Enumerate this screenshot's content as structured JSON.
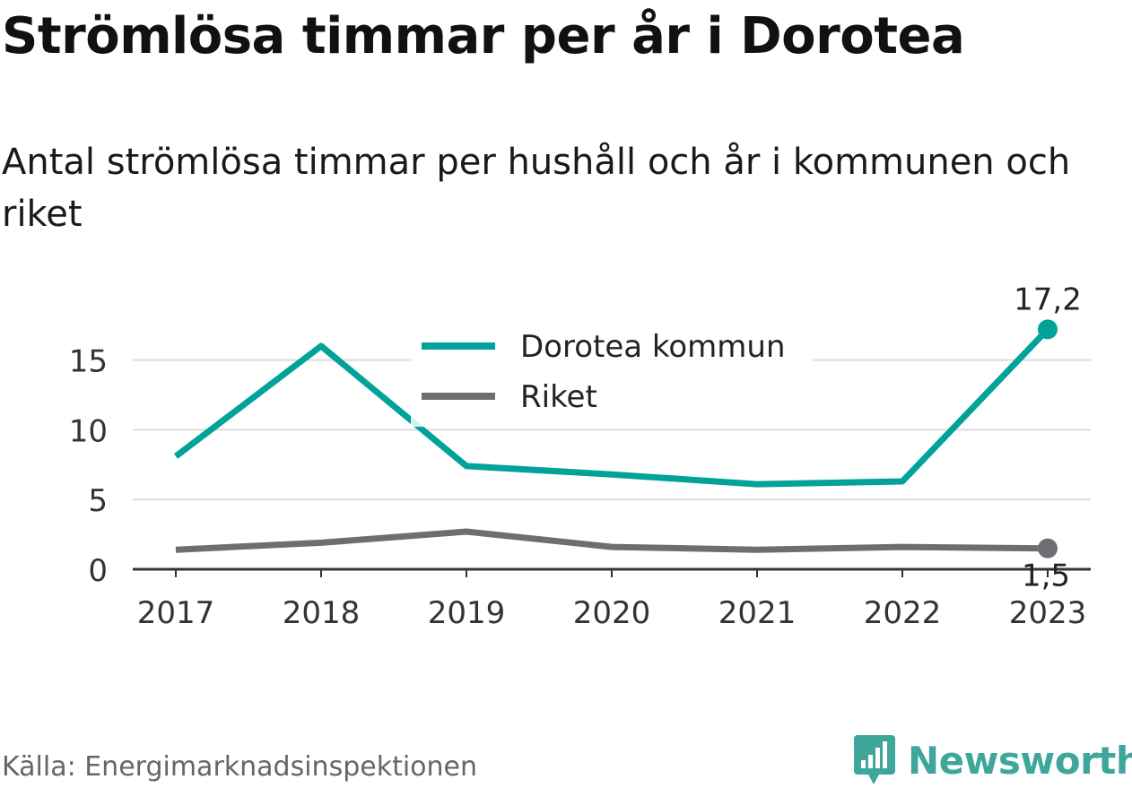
{
  "header": {
    "title": "Strömlösa timmar per år i Dorotea",
    "subtitle": "Antal strömlösa timmar per hushåll och år i kommunen och riket"
  },
  "footer": {
    "source": "Källa: Energimarknadsinspektionen",
    "brand": "Newsworthy",
    "brand_icon": "bar-chart-badge-icon"
  },
  "colors": {
    "dorotea": "#00a29a",
    "riket": "#6e6d72",
    "grid": "#dcdcdc",
    "axis": "#333333",
    "brand": "#3ea69b"
  },
  "chart_data": {
    "type": "line",
    "categories": [
      "2017",
      "2018",
      "2019",
      "2020",
      "2021",
      "2022",
      "2023"
    ],
    "series": [
      {
        "name": "Dorotea kommun",
        "values": [
          8.1,
          16.0,
          7.4,
          6.8,
          6.1,
          6.3,
          17.2
        ],
        "end_label": "17,2"
      },
      {
        "name": "Riket",
        "values": [
          1.4,
          1.9,
          2.7,
          1.6,
          1.4,
          1.6,
          1.5
        ],
        "end_label": "1,5"
      }
    ],
    "y_ticks": [
      0,
      5,
      10,
      15
    ],
    "ylim": [
      0,
      17.2
    ],
    "grid": true,
    "legend_position": "top-center"
  }
}
